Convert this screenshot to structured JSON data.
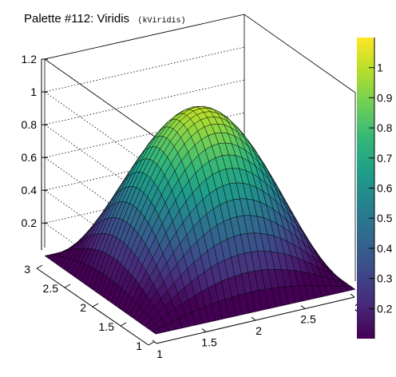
{
  "title": {
    "main": "Palette #112: Viridis",
    "code": "(kViridis)"
  },
  "chart_data": {
    "type": "surface",
    "palette": "Viridis",
    "function": "z = sin(pi*(x-1)/2) * sin(pi*(y-1)/2)",
    "x_range": [
      1,
      3
    ],
    "y_range": [
      1,
      3
    ],
    "z_range": [
      0.05,
      1.2
    ],
    "grid_resolution": 30,
    "x_ticks": [
      "1",
      "1.5",
      "2",
      "2.5",
      "3"
    ],
    "y_ticks": [
      "1",
      "1.5",
      "2",
      "2.5",
      "3"
    ],
    "z_ticks": [
      "0.2",
      "0.4",
      "0.6",
      "0.8",
      "1",
      "1.2"
    ],
    "colorbar_ticks": [
      "0.2",
      "0.3",
      "0.4",
      "0.5",
      "0.6",
      "0.7",
      "0.8",
      "0.9",
      "1"
    ],
    "colorbar_range": [
      0.1,
      1.1
    ],
    "viridis_stops": [
      "#440154",
      "#482878",
      "#3e4989",
      "#31688e",
      "#26828e",
      "#1f9e89",
      "#35b779",
      "#6ece58",
      "#b5de2b",
      "#fde725"
    ]
  }
}
